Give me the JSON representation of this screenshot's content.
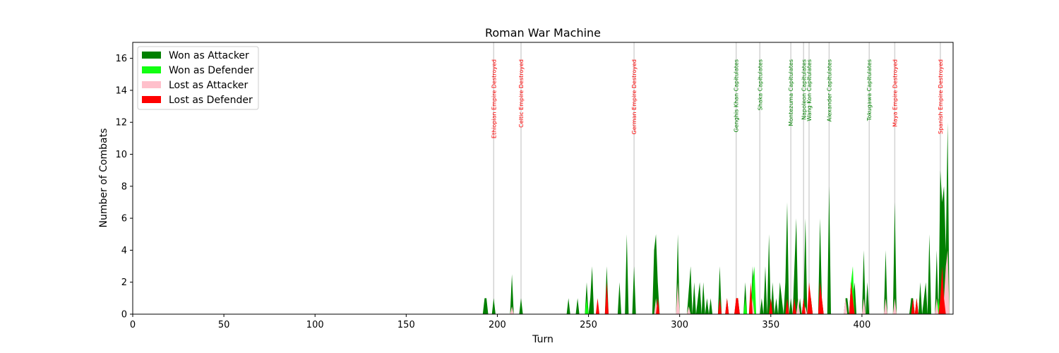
{
  "chart_data": {
    "type": "area",
    "title": "Roman War Machine",
    "xlabel": "Turn",
    "ylabel": "Number of Combats",
    "xlim": [
      0,
      450
    ],
    "ylim": [
      0,
      17
    ],
    "xticks": [
      0,
      50,
      100,
      150,
      200,
      250,
      300,
      350,
      400
    ],
    "yticks": [
      0,
      2,
      4,
      6,
      8,
      10,
      12,
      14,
      16
    ],
    "legend_position": "top-left",
    "colors": {
      "won_attacker": "#008000",
      "won_defender": "#11ff11",
      "lost_attacker": "#ffc0cb",
      "lost_defender": "#ff0000",
      "event_line": "#d3d3d3",
      "event_victory": "#008000",
      "event_destroyed": "#ff0000"
    },
    "series": [
      {
        "name": "Won as Attacker",
        "key": "won_attacker",
        "points": [
          [
            192,
            0
          ],
          [
            193,
            1
          ],
          [
            194,
            1
          ],
          [
            195,
            0
          ],
          [
            197,
            0
          ],
          [
            198,
            1
          ],
          [
            199,
            0
          ],
          [
            207,
            0
          ],
          [
            208,
            2.5
          ],
          [
            209,
            0
          ],
          [
            212,
            0
          ],
          [
            213,
            1
          ],
          [
            214,
            0
          ],
          [
            238,
            0
          ],
          [
            239,
            1
          ],
          [
            240,
            0
          ],
          [
            243,
            0
          ],
          [
            244,
            1
          ],
          [
            245,
            0
          ],
          [
            248,
            0
          ],
          [
            249,
            2
          ],
          [
            250,
            0
          ],
          [
            251,
            1
          ],
          [
            252,
            3
          ],
          [
            253,
            0
          ],
          [
            259,
            0
          ],
          [
            260,
            3
          ],
          [
            261,
            0
          ],
          [
            266,
            0
          ],
          [
            267,
            2
          ],
          [
            268,
            0
          ],
          [
            270,
            0
          ],
          [
            271,
            5
          ],
          [
            272,
            0
          ],
          [
            274,
            0
          ],
          [
            275,
            3
          ],
          [
            276,
            0
          ],
          [
            285,
            0
          ],
          [
            286,
            4
          ],
          [
            287,
            5
          ],
          [
            288,
            2
          ],
          [
            289,
            0
          ],
          [
            298,
            0
          ],
          [
            299,
            5
          ],
          [
            300,
            0
          ],
          [
            304,
            0
          ],
          [
            305,
            1.5
          ],
          [
            306,
            3
          ],
          [
            307,
            0
          ],
          [
            308,
            2
          ],
          [
            309,
            0
          ],
          [
            310,
            1
          ],
          [
            311,
            2
          ],
          [
            312,
            0
          ],
          [
            313,
            2
          ],
          [
            314,
            0
          ],
          [
            315,
            1
          ],
          [
            316,
            0
          ],
          [
            317,
            1
          ],
          [
            318,
            0
          ],
          [
            321,
            0
          ],
          [
            322,
            3
          ],
          [
            323,
            0
          ],
          [
            325,
            0
          ],
          [
            326,
            1
          ],
          [
            327,
            0
          ],
          [
            330,
            0
          ],
          [
            331,
            1
          ],
          [
            332,
            1
          ],
          [
            333,
            0
          ],
          [
            335,
            0
          ],
          [
            336,
            2
          ],
          [
            337,
            0
          ],
          [
            339,
            0
          ],
          [
            340,
            3
          ],
          [
            341,
            1
          ],
          [
            342,
            0
          ],
          [
            344,
            0
          ],
          [
            345,
            1
          ],
          [
            346,
            0
          ],
          [
            347,
            3
          ],
          [
            348,
            0
          ],
          [
            349,
            5
          ],
          [
            350,
            0
          ],
          [
            351,
            2
          ],
          [
            352,
            0
          ],
          [
            353,
            1
          ],
          [
            354,
            0
          ],
          [
            355,
            2
          ],
          [
            356,
            1
          ],
          [
            357,
            0
          ],
          [
            358,
            2
          ],
          [
            359,
            7
          ],
          [
            360,
            0
          ],
          [
            361,
            1
          ],
          [
            362,
            0
          ],
          [
            363,
            3
          ],
          [
            364,
            6
          ],
          [
            365,
            0
          ],
          [
            366,
            1
          ],
          [
            367,
            0
          ],
          [
            368,
            1
          ],
          [
            369,
            6
          ],
          [
            370,
            0
          ],
          [
            371,
            1
          ],
          [
            372,
            1
          ],
          [
            373,
            0
          ],
          [
            376,
            0
          ],
          [
            377,
            6
          ],
          [
            378,
            1
          ],
          [
            379,
            0
          ],
          [
            381,
            0
          ],
          [
            382,
            8
          ],
          [
            383,
            0
          ],
          [
            390,
            0
          ],
          [
            391,
            1
          ],
          [
            392,
            1
          ],
          [
            393,
            0
          ],
          [
            394,
            2
          ],
          [
            395,
            1
          ],
          [
            396,
            2
          ],
          [
            397,
            0
          ],
          [
            400,
            0
          ],
          [
            401,
            4
          ],
          [
            402,
            0
          ],
          [
            403,
            2
          ],
          [
            404,
            0
          ],
          [
            412,
            0
          ],
          [
            413,
            4
          ],
          [
            414,
            0
          ],
          [
            417,
            0
          ],
          [
            418,
            7
          ],
          [
            419,
            0
          ],
          [
            426,
            0
          ],
          [
            427,
            1
          ],
          [
            428,
            1
          ],
          [
            429,
            0
          ],
          [
            430,
            1
          ],
          [
            431,
            0
          ],
          [
            432,
            2
          ],
          [
            433,
            0
          ],
          [
            434,
            1
          ],
          [
            435,
            2
          ],
          [
            436,
            0
          ],
          [
            437,
            5
          ],
          [
            438,
            0
          ],
          [
            440,
            0
          ],
          [
            441,
            4
          ],
          [
            442,
            0
          ],
          [
            443,
            9
          ],
          [
            444,
            7
          ],
          [
            445,
            8
          ],
          [
            446,
            4
          ],
          [
            447,
            12
          ],
          [
            448,
            0
          ]
        ]
      },
      {
        "name": "Won as Defender",
        "key": "won_defender",
        "points": [
          [
            248,
            0
          ],
          [
            249,
            1
          ],
          [
            250,
            0
          ],
          [
            286,
            0
          ],
          [
            287,
            1
          ],
          [
            288,
            0
          ],
          [
            335,
            0
          ],
          [
            336,
            1
          ],
          [
            337,
            0
          ],
          [
            339,
            0
          ],
          [
            340,
            2
          ],
          [
            341,
            3
          ],
          [
            342,
            0
          ],
          [
            364,
            0
          ],
          [
            365,
            1
          ],
          [
            366,
            0
          ],
          [
            371,
            0
          ],
          [
            372,
            1
          ],
          [
            373,
            0
          ],
          [
            393,
            0
          ],
          [
            394,
            2
          ],
          [
            395,
            3
          ],
          [
            396,
            0
          ],
          [
            441,
            0
          ],
          [
            442,
            1
          ],
          [
            443,
            0
          ],
          [
            446,
            0
          ],
          [
            447,
            1
          ],
          [
            448,
            0
          ]
        ]
      },
      {
        "name": "Lost as Attacker",
        "key": "lost_attacker",
        "points": [
          [
            207,
            0
          ],
          [
            208,
            0.5
          ],
          [
            209,
            0
          ],
          [
            286,
            0
          ],
          [
            287,
            1
          ],
          [
            288,
            0
          ],
          [
            298,
            0
          ],
          [
            299,
            2
          ],
          [
            300,
            0
          ],
          [
            304,
            0
          ],
          [
            305,
            0.5
          ],
          [
            306,
            0
          ],
          [
            330,
            0
          ],
          [
            331,
            1
          ],
          [
            332,
            0
          ],
          [
            339,
            0
          ],
          [
            340,
            1
          ],
          [
            341,
            0
          ],
          [
            364,
            0
          ],
          [
            365,
            1
          ],
          [
            366,
            0
          ],
          [
            368,
            0
          ],
          [
            369,
            0.5
          ],
          [
            370,
            0
          ],
          [
            376,
            0
          ],
          [
            377,
            1
          ],
          [
            378,
            0
          ],
          [
            390,
            0
          ],
          [
            391,
            1
          ],
          [
            392,
            0
          ],
          [
            400,
            0
          ],
          [
            401,
            1
          ],
          [
            402,
            0
          ],
          [
            412,
            0
          ],
          [
            413,
            1
          ],
          [
            414,
            0
          ],
          [
            417,
            0
          ],
          [
            418,
            1
          ],
          [
            419,
            0
          ],
          [
            440,
            0
          ],
          [
            441,
            1
          ],
          [
            442,
            0
          ],
          [
            444,
            0
          ],
          [
            445,
            1
          ],
          [
            446,
            3
          ],
          [
            447,
            4
          ],
          [
            448,
            0
          ]
        ]
      },
      {
        "name": "Lost as Defender",
        "key": "lost_defender",
        "points": [
          [
            254,
            0
          ],
          [
            255,
            1
          ],
          [
            256,
            0
          ],
          [
            259,
            0
          ],
          [
            260,
            2
          ],
          [
            261,
            0
          ],
          [
            287,
            0
          ],
          [
            288,
            1
          ],
          [
            289,
            0
          ],
          [
            321,
            0
          ],
          [
            322,
            1
          ],
          [
            323,
            0
          ],
          [
            325,
            0
          ],
          [
            326,
            1
          ],
          [
            327,
            0
          ],
          [
            330,
            0
          ],
          [
            331,
            1
          ],
          [
            332,
            1
          ],
          [
            333,
            0
          ],
          [
            338,
            0
          ],
          [
            339,
            2
          ],
          [
            340,
            0
          ],
          [
            349,
            0
          ],
          [
            350,
            1
          ],
          [
            351,
            0
          ],
          [
            358,
            0
          ],
          [
            359,
            1
          ],
          [
            360,
            0
          ],
          [
            362,
            0
          ],
          [
            363,
            1
          ],
          [
            364,
            0
          ],
          [
            367,
            0
          ],
          [
            368,
            1
          ],
          [
            369,
            0
          ],
          [
            370,
            0
          ],
          [
            371,
            2
          ],
          [
            372,
            1
          ],
          [
            373,
            0
          ],
          [
            376,
            0
          ],
          [
            377,
            2
          ],
          [
            378,
            1
          ],
          [
            379,
            0
          ],
          [
            393,
            0
          ],
          [
            394,
            2
          ],
          [
            395,
            1
          ],
          [
            396,
            0
          ],
          [
            427,
            0
          ],
          [
            428,
            1
          ],
          [
            429,
            0
          ],
          [
            430,
            1
          ],
          [
            431,
            0
          ],
          [
            442,
            0
          ],
          [
            443,
            1
          ],
          [
            444,
            3
          ],
          [
            445,
            1
          ],
          [
            446,
            0
          ]
        ]
      }
    ],
    "events": [
      {
        "x": 198,
        "label": "Ethiopian Empire Destroyed",
        "kind": "destroyed"
      },
      {
        "x": 213,
        "label": "Celtic Empire Destroyed",
        "kind": "destroyed"
      },
      {
        "x": 275,
        "label": "German Empire Destroyed",
        "kind": "destroyed"
      },
      {
        "x": 331,
        "label": "Genghis Khan Capitulates",
        "kind": "victory"
      },
      {
        "x": 344,
        "label": "Shaka Capitulates",
        "kind": "victory"
      },
      {
        "x": 361,
        "label": "Montezuma Capitulates",
        "kind": "victory"
      },
      {
        "x": 368,
        "label": "Napoleon Capitulates",
        "kind": "victory"
      },
      {
        "x": 371,
        "label": "Wang Kon Capitulates",
        "kind": "victory"
      },
      {
        "x": 382,
        "label": "Alexander Capitulates",
        "kind": "victory"
      },
      {
        "x": 404,
        "label": "Tokugawa Capitulates",
        "kind": "victory"
      },
      {
        "x": 418,
        "label": "Maya Empire Destroyed",
        "kind": "destroyed"
      },
      {
        "x": 443,
        "label": "Spanish Empire Destroyed",
        "kind": "destroyed"
      }
    ]
  }
}
